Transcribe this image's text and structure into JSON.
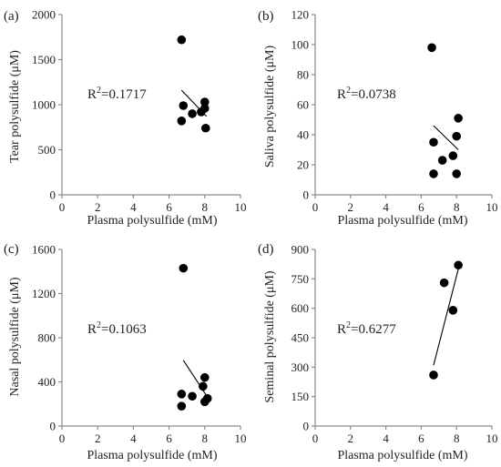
{
  "chart_data": [
    {
      "type": "scatter",
      "panel": "(a)",
      "xlabel": "Plasma polysulfide (mM)",
      "ylabel": "Tear polysulfide (μM)",
      "xlim": [
        0,
        10
      ],
      "ylim": [
        0,
        2000
      ],
      "xticks": [
        "0",
        "2",
        "4",
        "6",
        "8",
        "10"
      ],
      "yticks": [
        "0",
        "500",
        "1000",
        "1500",
        "2000"
      ],
      "points": [
        [
          6.7,
          1720
        ],
        [
          6.7,
          820
        ],
        [
          6.8,
          990
        ],
        [
          7.3,
          900
        ],
        [
          7.8,
          920
        ],
        [
          8.0,
          960
        ],
        [
          8.0,
          1030
        ],
        [
          8.05,
          740
        ]
      ],
      "trendline": [
        [
          6.7,
          1160
        ],
        [
          8.1,
          870
        ]
      ],
      "r2_base": "R",
      "r2_exp": "2",
      "r2_value": "=0.1717"
    },
    {
      "type": "scatter",
      "panel": "(b)",
      "xlabel": "Plasma polysulfide (mM)",
      "ylabel": "Saliva polysulfide (μM)",
      "xlim": [
        0,
        10
      ],
      "ylim": [
        0,
        120
      ],
      "xticks": [
        "0",
        "2",
        "4",
        "6",
        "8",
        "10"
      ],
      "yticks": [
        "0",
        "20",
        "40",
        "60",
        "80",
        "100",
        "120"
      ],
      "points": [
        [
          6.6,
          98
        ],
        [
          6.7,
          35
        ],
        [
          6.7,
          14
        ],
        [
          7.2,
          23
        ],
        [
          7.8,
          26
        ],
        [
          8.0,
          39
        ],
        [
          8.1,
          51
        ],
        [
          8.0,
          14
        ]
      ],
      "trendline": [
        [
          6.7,
          46
        ],
        [
          8.1,
          30
        ]
      ],
      "r2_base": "R",
      "r2_exp": "2",
      "r2_value": "=0.0738"
    },
    {
      "type": "scatter",
      "panel": "(c)",
      "xlabel": "Plasma polysulfide (mM)",
      "ylabel": "Nasal polysulfide (μM)",
      "xlim": [
        0,
        10
      ],
      "ylim": [
        0,
        1600
      ],
      "xticks": [
        "0",
        "2",
        "4",
        "6",
        "8",
        "10"
      ],
      "yticks": [
        "0",
        "400",
        "800",
        "1200",
        "1600"
      ],
      "points": [
        [
          6.8,
          1430
        ],
        [
          6.7,
          290
        ],
        [
          6.7,
          180
        ],
        [
          7.3,
          270
        ],
        [
          7.9,
          360
        ],
        [
          8.0,
          440
        ],
        [
          8.0,
          220
        ],
        [
          8.15,
          250
        ]
      ],
      "trendline": [
        [
          6.8,
          595
        ],
        [
          8.1,
          275
        ]
      ],
      "r2_base": "R",
      "r2_exp": "2",
      "r2_value": "=0.1063"
    },
    {
      "type": "scatter",
      "panel": "(d)",
      "xlabel": "Plasma polysulfide (mM)",
      "ylabel": "Seminal polysulfide (μM)",
      "xlim": [
        0,
        10
      ],
      "ylim": [
        0,
        900
      ],
      "xticks": [
        "0",
        "2",
        "4",
        "6",
        "8",
        "10"
      ],
      "yticks": [
        "0",
        "150",
        "300",
        "450",
        "600",
        "750",
        "900"
      ],
      "points": [
        [
          6.7,
          260
        ],
        [
          7.3,
          730
        ],
        [
          7.8,
          590
        ],
        [
          8.1,
          820
        ]
      ],
      "trendline": [
        [
          6.7,
          310
        ],
        [
          8.1,
          800
        ]
      ],
      "r2_base": "R",
      "r2_exp": "2",
      "r2_value": "=0.6277"
    }
  ]
}
